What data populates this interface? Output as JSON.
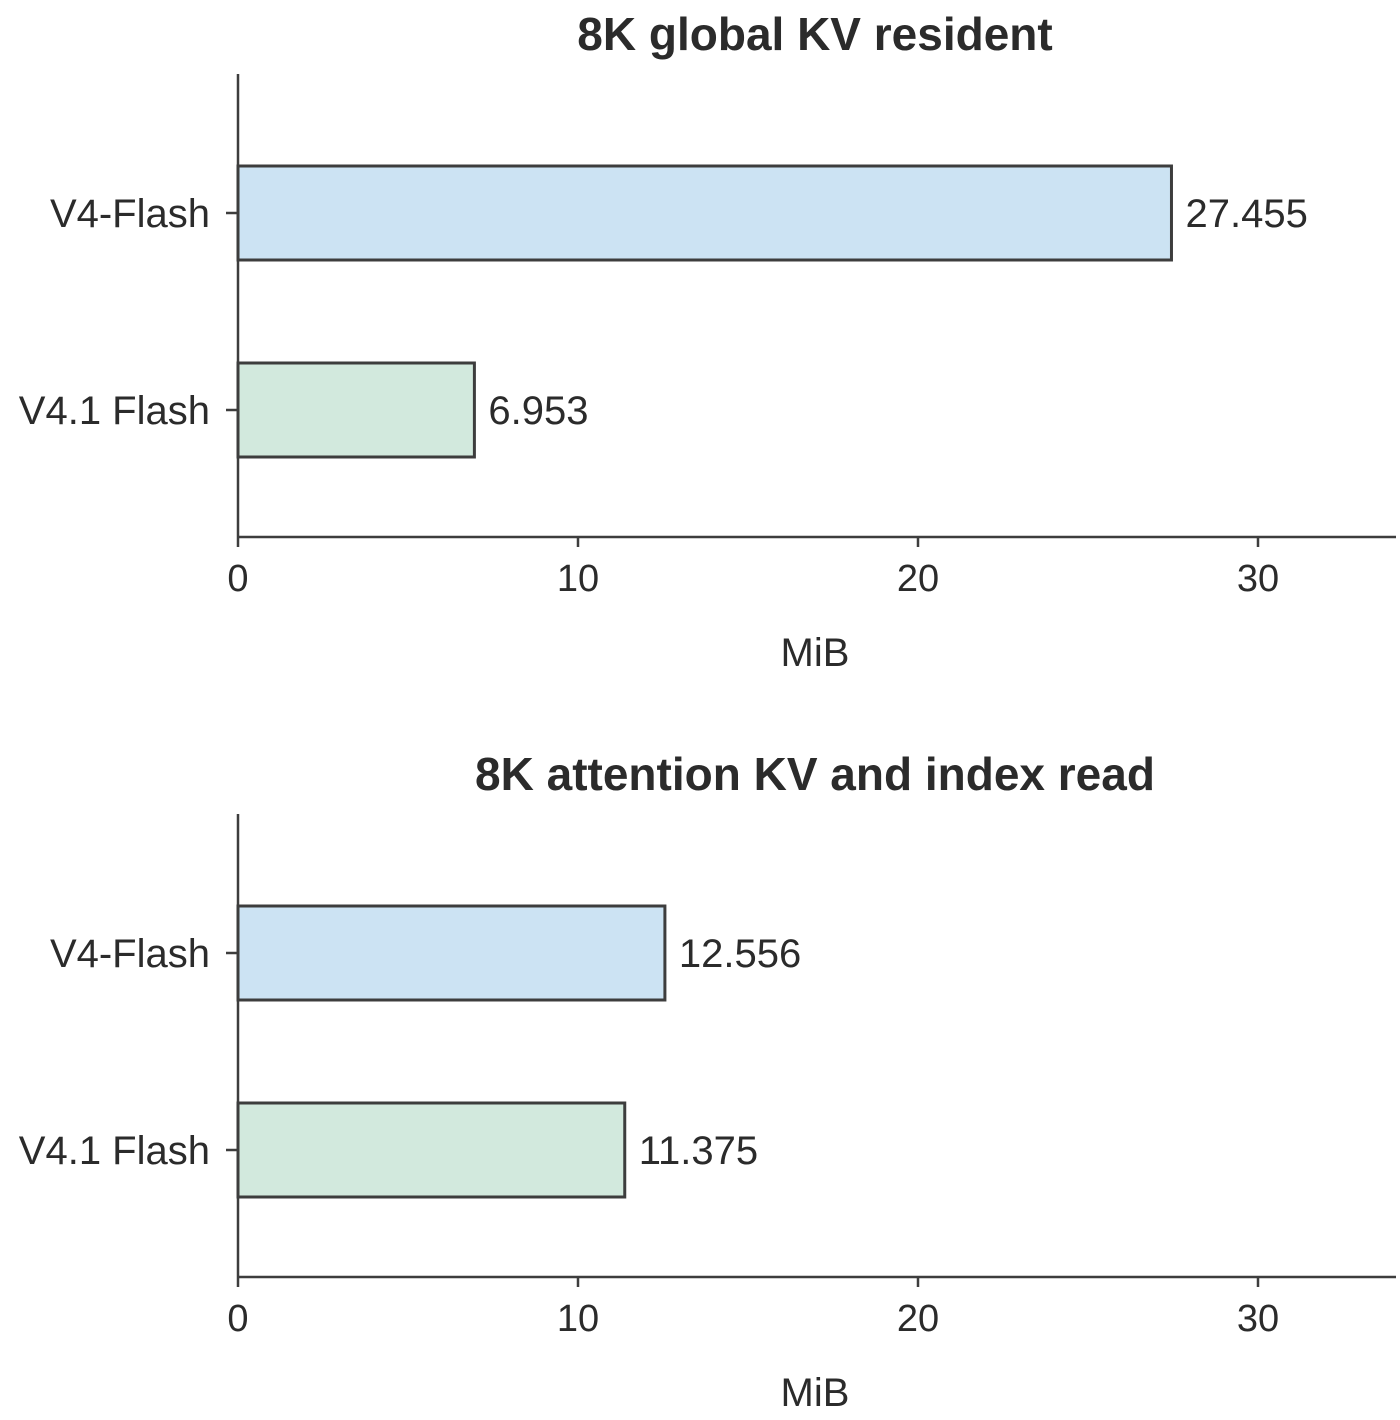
{
  "chart_data": [
    {
      "type": "bar",
      "orientation": "horizontal",
      "title": "8K global KV resident",
      "xlabel": "MiB",
      "ylabel": "",
      "categories": [
        "V4-Flash",
        "V4.1 Flash"
      ],
      "values": [
        27.455,
        6.953
      ],
      "value_labels": [
        "27.455",
        "6.953"
      ],
      "xlim": [
        0,
        33.5
      ],
      "xticks": [
        0,
        10,
        20,
        30
      ],
      "xtick_labels": [
        "0",
        "10",
        "20",
        "30"
      ],
      "colors": [
        "#cce3f3",
        "#d2e9dd"
      ],
      "edge_color": "#3d3d3d",
      "grid": false
    },
    {
      "type": "bar",
      "orientation": "horizontal",
      "title": "8K attention KV and index read",
      "xlabel": "MiB",
      "ylabel": "",
      "categories": [
        "V4-Flash",
        "V4.1 Flash"
      ],
      "values": [
        12.556,
        11.375
      ],
      "value_labels": [
        "12.556",
        "11.375"
      ],
      "xlim": [
        0,
        33.5
      ],
      "xticks": [
        0,
        10,
        20,
        30
      ],
      "xtick_labels": [
        "0",
        "10",
        "20",
        "30"
      ],
      "colors": [
        "#cce3f3",
        "#d2e9dd"
      ],
      "edge_color": "#3d3d3d",
      "grid": false
    }
  ]
}
